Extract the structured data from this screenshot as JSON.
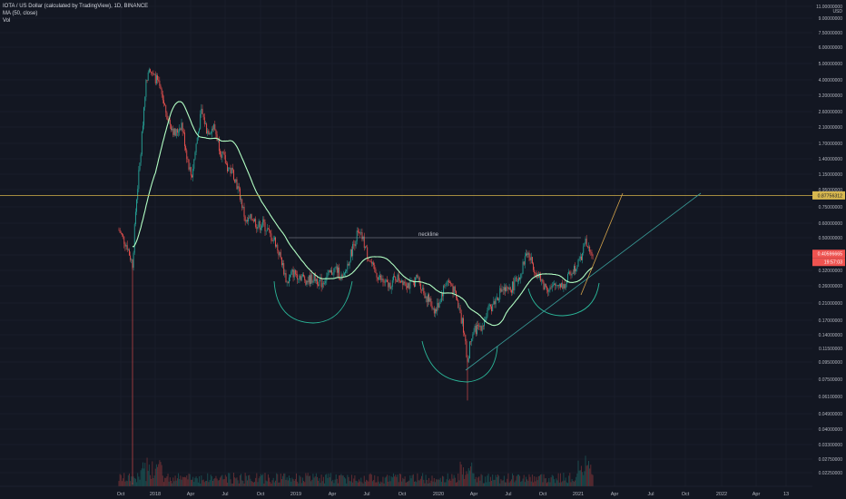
{
  "legend": {
    "symbol_line": "IOTA / US Dollar (calculated by TradingView), 1D, BINANCE",
    "ma_line": "MA (50, close)",
    "vol_line": "Vol"
  },
  "colors": {
    "background": "#131722",
    "up": "#26a69a",
    "down": "#ef5350",
    "ma": "#b2ffc4",
    "level": "#d4b24a",
    "trend": "#3a9f9a",
    "arc": "#2bb89a",
    "grid": "#1e2330",
    "text": "#b2b5be"
  },
  "chart_data": {
    "type": "candlestick",
    "scale": "log",
    "currency_label": "USD",
    "y_ticks": [
      "11.00000000",
      "9.00000000",
      "7.50000000",
      "6.00000000",
      "5.00000000",
      "4.00000000",
      "3.20000000",
      "2.60000000",
      "2.10000000",
      "1.70000000",
      "1.40000000",
      "1.15000000",
      "0.95000000",
      "0.75000000",
      "0.60000000",
      "0.50000000",
      "0.40000000",
      "0.32000000",
      "0.26000000",
      "0.21000000",
      "0.17000000",
      "0.14000000",
      "0.11500000",
      "0.09500000",
      "0.07500000",
      "0.06100000",
      "0.04900000",
      "0.04000000",
      "0.03300000",
      "0.02750000",
      "0.02250000"
    ],
    "x_ticks": [
      "Oct",
      "2018",
      "Apr",
      "Jul",
      "Oct",
      "2019",
      "Apr",
      "Jul",
      "Oct",
      "2020",
      "Apr",
      "Jul",
      "Oct",
      "2021",
      "Apr",
      "Jul",
      "Oct",
      "2022",
      "Apr",
      "13"
    ],
    "price_badges": [
      {
        "label": "0.87756312",
        "kind": "level"
      },
      {
        "label": "0.40596665",
        "kind": "price"
      },
      {
        "label": "19:57:03",
        "kind": "timer"
      }
    ],
    "annotation": "neckline"
  }
}
